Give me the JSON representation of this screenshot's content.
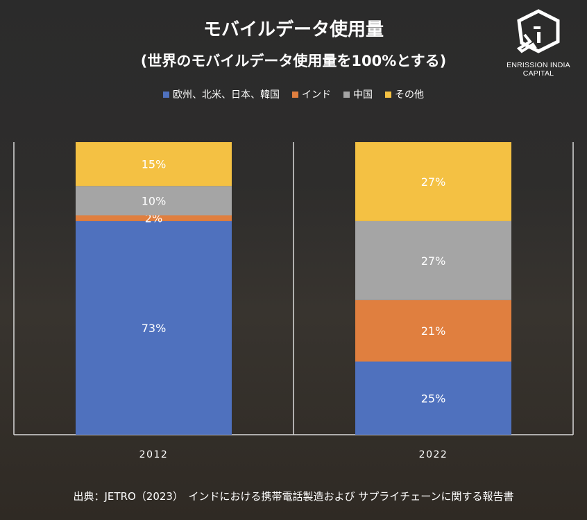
{
  "title": "モバイルデータ使用量",
  "subtitle": "(世界のモバイルデータ使用量を100%とする)",
  "logo_text": "ENRISSION INDIA CAPITAL",
  "source": "出典：JETRO（2023）　インドにおける携帯電話製造および サプライチェーンに関する報告書",
  "chart_data": {
    "type": "bar",
    "stacked": true,
    "title": "モバイルデータ使用量",
    "subtitle": "(世界のモバイルデータ使用量を100%とする)",
    "categories": [
      "2012",
      "2022"
    ],
    "series": [
      {
        "name": "欧州、北米、日本、韓国",
        "color": "#4f71be",
        "values": [
          73,
          25
        ]
      },
      {
        "name": "インド",
        "color": "#e07f3f",
        "values": [
          2,
          21
        ]
      },
      {
        "name": "中国",
        "color": "#a5a5a5",
        "values": [
          10,
          27
        ]
      },
      {
        "name": "その他",
        "color": "#f4c143",
        "values": [
          15,
          27
        ]
      }
    ],
    "value_suffix": "%",
    "ylim": [
      0,
      100
    ],
    "legend_position": "top",
    "grid": false
  }
}
